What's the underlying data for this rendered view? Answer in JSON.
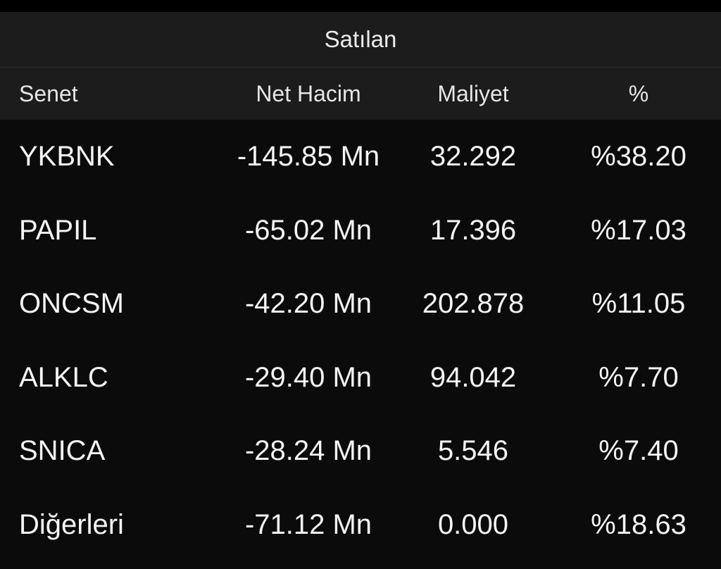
{
  "table": {
    "title": "Satılan",
    "headers": {
      "name": "Senet",
      "net_volume": "Net Hacim",
      "cost": "Maliyet",
      "percent": "%"
    },
    "rows": [
      {
        "name": "YKBNK",
        "net_volume": "-145.85 Mn",
        "cost": "32.292",
        "percent": "%38.20"
      },
      {
        "name": "PAPIL",
        "net_volume": "-65.02 Mn",
        "cost": "17.396",
        "percent": "%17.03"
      },
      {
        "name": "ONCSM",
        "net_volume": "-42.20 Mn",
        "cost": "202.878",
        "percent": "%11.05"
      },
      {
        "name": "ALKLC",
        "net_volume": "-29.40 Mn",
        "cost": "94.042",
        "percent": "%7.70"
      },
      {
        "name": "SNICA",
        "net_volume": "-28.24 Mn",
        "cost": "5.546",
        "percent": "%7.40"
      },
      {
        "name": "Diğerleri",
        "net_volume": "-71.12 Mn",
        "cost": "0.000",
        "percent": "%18.63"
      }
    ]
  }
}
